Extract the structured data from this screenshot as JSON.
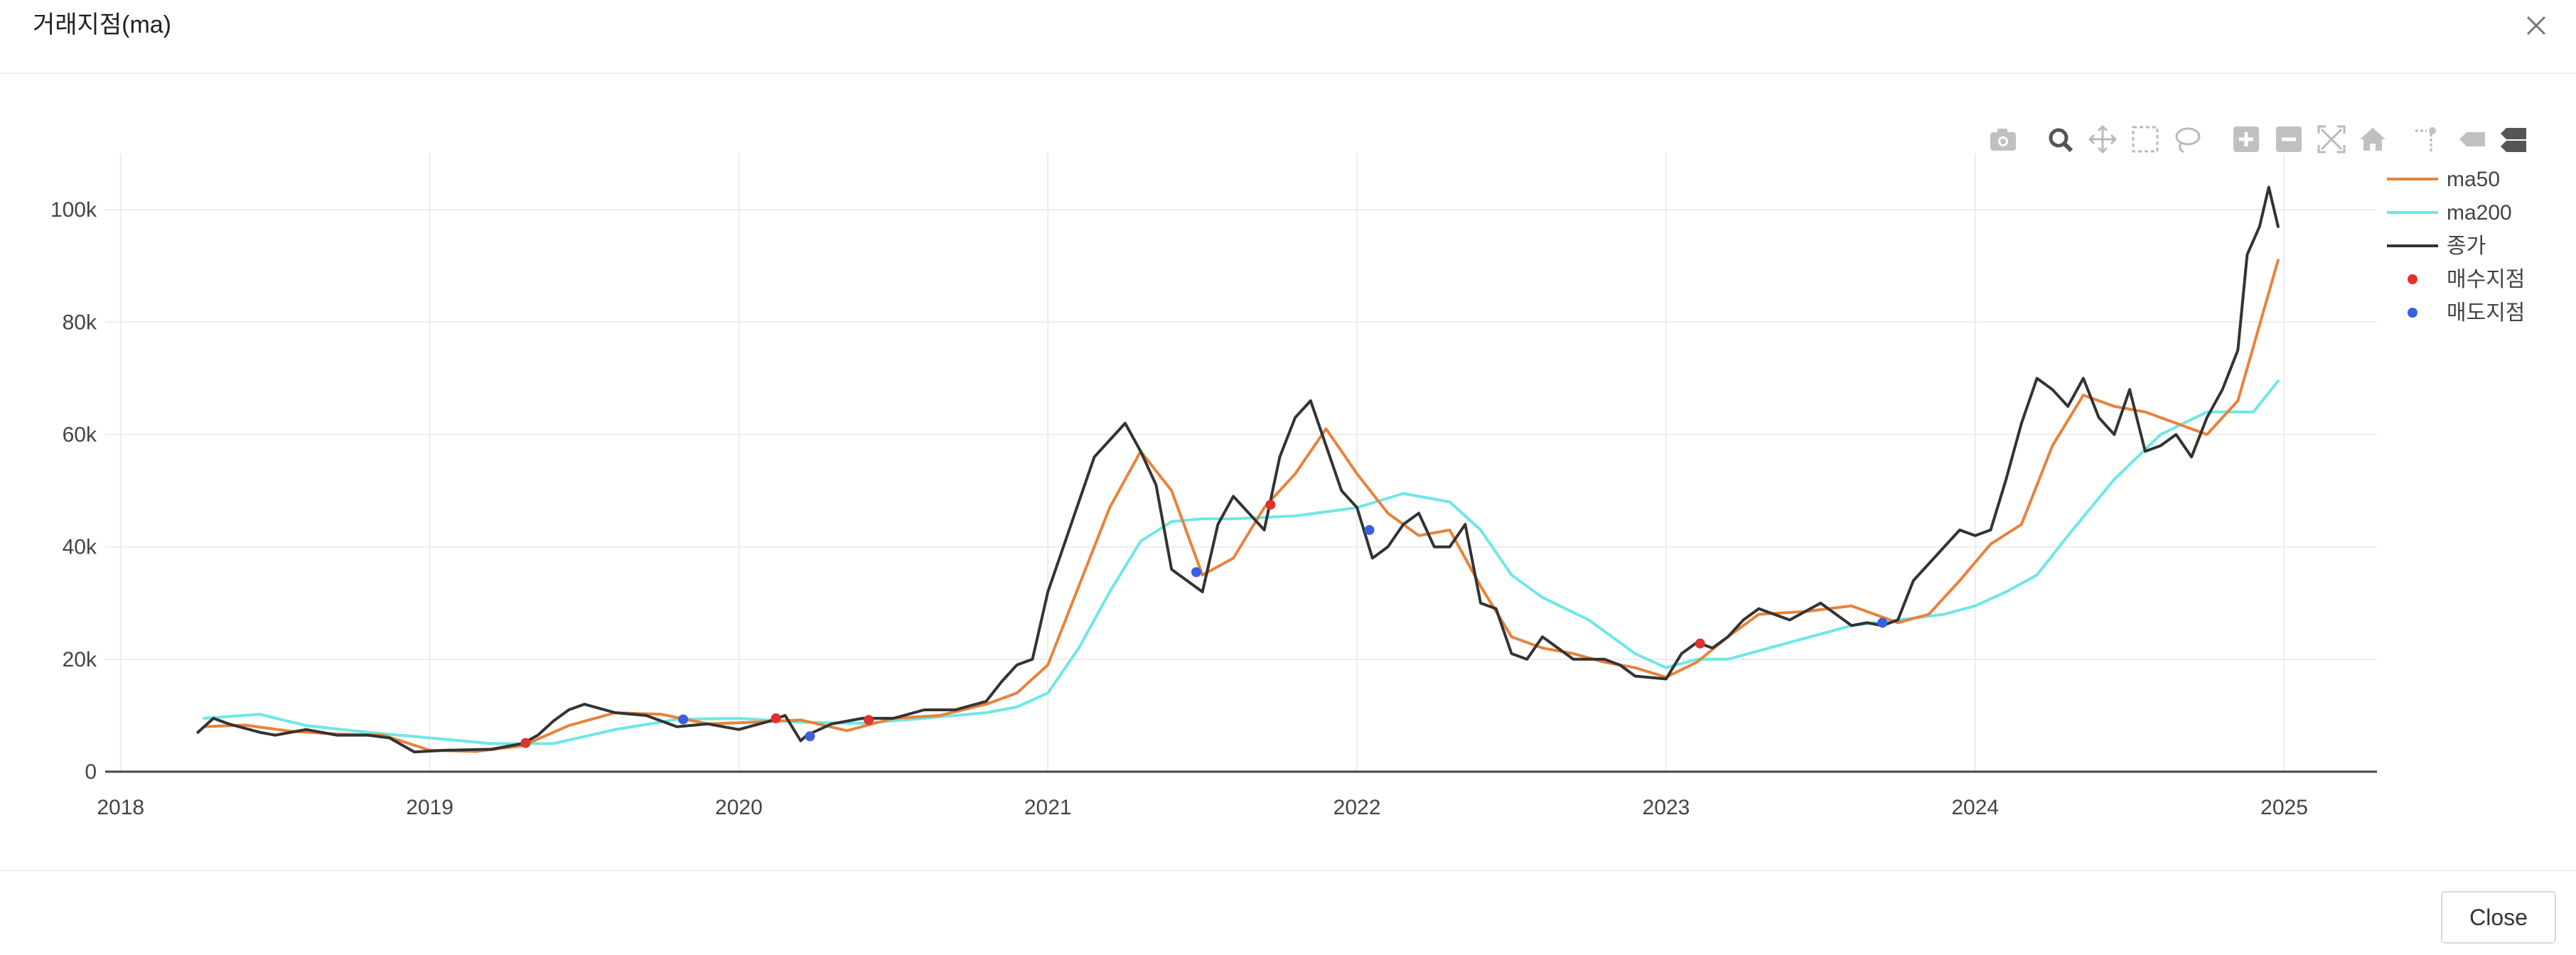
{
  "dialog": {
    "title": "거래지점(ma)",
    "close_button_label": "Close"
  },
  "toolbar": {
    "icons": [
      "camera-icon",
      "zoom-icon",
      "pan-icon",
      "box-select-icon",
      "lasso-select-icon",
      "zoom-in-icon",
      "zoom-out-icon",
      "autoscale-icon",
      "reset-axes-icon",
      "spike-lines-icon",
      "hover-closest-icon",
      "hover-compare-icon"
    ]
  },
  "chart_data": {
    "type": "line",
    "title": "",
    "xlabel": "",
    "ylabel": "",
    "x_range": [
      2017.95,
      2025.3
    ],
    "ylim": [
      0,
      110000
    ],
    "y_ticks": [
      0,
      20000,
      40000,
      60000,
      80000,
      100000
    ],
    "y_tick_labels": [
      "0",
      "20k",
      "40k",
      "60k",
      "80k",
      "100k"
    ],
    "x_ticks": [
      2018,
      2019,
      2020,
      2021,
      2022,
      2023,
      2024,
      2025
    ],
    "x_tick_labels": [
      "2018",
      "2019",
      "2020",
      "2021",
      "2022",
      "2023",
      "2024",
      "2025"
    ],
    "grid": true,
    "legend_position": "top-right",
    "colors": {
      "ma50": "#e8823a",
      "ma200": "#6ee7e7",
      "close": "#333333",
      "buy": "#e03030",
      "sell": "#3a5fe0"
    },
    "series": [
      {
        "name": "ma50",
        "kind": "line",
        "x": [
          2018.27,
          2018.4,
          2018.55,
          2018.7,
          2018.85,
          2019.0,
          2019.15,
          2019.3,
          2019.45,
          2019.6,
          2019.75,
          2019.9,
          2020.05,
          2020.2,
          2020.35,
          2020.5,
          2020.65,
          2020.8,
          2020.9,
          2021.0,
          2021.1,
          2021.2,
          2021.3,
          2021.4,
          2021.5,
          2021.6,
          2021.7,
          2021.8,
          2021.9,
          2022.0,
          2022.1,
          2022.2,
          2022.3,
          2022.4,
          2022.5,
          2022.6,
          2022.7,
          2022.8,
          2022.9,
          2023.0,
          2023.1,
          2023.2,
          2023.3,
          2023.45,
          2023.6,
          2023.75,
          2023.85,
          2023.95,
          2024.05,
          2024.15,
          2024.25,
          2024.35,
          2024.45,
          2024.55,
          2024.65,
          2024.75,
          2024.85,
          2024.98
        ],
        "y": [
          8000,
          8300,
          7200,
          6700,
          6500,
          3800,
          3600,
          4600,
          8200,
          10500,
          10200,
          8500,
          8800,
          9200,
          7300,
          9500,
          10000,
          12000,
          14000,
          19000,
          33000,
          47000,
          57000,
          50000,
          35000,
          38000,
          47000,
          53000,
          61000,
          53000,
          46000,
          42000,
          43000,
          33000,
          24000,
          22000,
          21000,
          19500,
          18500,
          16800,
          19500,
          24000,
          28000,
          28500,
          29500,
          26500,
          28000,
          34000,
          40500,
          44000,
          58000,
          67000,
          65000,
          64000,
          62000,
          60000,
          66000,
          91000
        ]
      },
      {
        "name": "ma200",
        "kind": "line",
        "x": [
          2018.27,
          2018.45,
          2018.6,
          2018.8,
          2019.0,
          2019.2,
          2019.4,
          2019.6,
          2019.8,
          2020.0,
          2020.2,
          2020.4,
          2020.6,
          2020.8,
          2020.9,
          2021.0,
          2021.1,
          2021.2,
          2021.3,
          2021.4,
          2021.5,
          2021.6,
          2021.8,
          2022.0,
          2022.15,
          2022.3,
          2022.4,
          2022.5,
          2022.6,
          2022.75,
          2022.9,
          2023.0,
          2023.1,
          2023.2,
          2023.4,
          2023.6,
          2023.75,
          2023.9,
          2024.0,
          2024.1,
          2024.2,
          2024.3,
          2024.45,
          2024.6,
          2024.75,
          2024.9,
          2024.98
        ],
        "y": [
          9500,
          10200,
          8200,
          7000,
          6000,
          5000,
          5000,
          7500,
          9300,
          9500,
          8800,
          8600,
          9500,
          10500,
          11500,
          14000,
          22000,
          32000,
          41000,
          44500,
          45000,
          45000,
          45500,
          47000,
          49500,
          48000,
          43000,
          35000,
          31000,
          27000,
          21000,
          18500,
          20000,
          20000,
          23000,
          26000,
          27000,
          28000,
          29500,
          32000,
          35000,
          42000,
          52000,
          60000,
          64000,
          64000,
          69500
        ]
      },
      {
        "name": "종가",
        "kind": "line",
        "x": [
          2018.25,
          2018.3,
          2018.35,
          2018.45,
          2018.5,
          2018.6,
          2018.7,
          2018.8,
          2018.87,
          2018.95,
          2019.05,
          2019.2,
          2019.3,
          2019.35,
          2019.4,
          2019.45,
          2019.5,
          2019.6,
          2019.7,
          2019.8,
          2019.9,
          2020.0,
          2020.1,
          2020.15,
          2020.2,
          2020.22,
          2020.3,
          2020.4,
          2020.5,
          2020.6,
          2020.7,
          2020.8,
          2020.85,
          2020.9,
          2020.95,
          2021.0,
          2021.05,
          2021.1,
          2021.15,
          2021.2,
          2021.25,
          2021.3,
          2021.35,
          2021.4,
          2021.45,
          2021.5,
          2021.55,
          2021.6,
          2021.65,
          2021.7,
          2021.75,
          2021.8,
          2021.85,
          2021.9,
          2021.95,
          2022.0,
          2022.05,
          2022.1,
          2022.15,
          2022.2,
          2022.25,
          2022.3,
          2022.35,
          2022.4,
          2022.45,
          2022.5,
          2022.55,
          2022.6,
          2022.7,
          2022.8,
          2022.85,
          2022.9,
          2023.0,
          2023.05,
          2023.1,
          2023.15,
          2023.2,
          2023.25,
          2023.3,
          2023.4,
          2023.5,
          2023.6,
          2023.65,
          2023.7,
          2023.75,
          2023.8,
          2023.85,
          2023.9,
          2023.95,
          2024.0,
          2024.05,
          2024.1,
          2024.15,
          2024.2,
          2024.25,
          2024.3,
          2024.35,
          2024.4,
          2024.45,
          2024.5,
          2024.55,
          2024.6,
          2024.65,
          2024.7,
          2024.75,
          2024.8,
          2024.85,
          2024.88,
          2024.92,
          2024.95,
          2024.98
        ],
        "y": [
          7000,
          9500,
          8500,
          7000,
          6500,
          7500,
          6500,
          6500,
          6000,
          3500,
          3800,
          4000,
          5000,
          6500,
          9000,
          11000,
          12000,
          10500,
          10000,
          8000,
          8500,
          7500,
          9000,
          10000,
          5500,
          6500,
          8500,
          9500,
          9500,
          11000,
          11000,
          12500,
          16000,
          19000,
          20000,
          32000,
          40000,
          48000,
          56000,
          59000,
          62000,
          57000,
          51000,
          36000,
          34000,
          32000,
          44000,
          49000,
          46000,
          43000,
          56000,
          63000,
          66000,
          58000,
          50000,
          47000,
          38000,
          40000,
          44000,
          46000,
          40000,
          40000,
          44000,
          30000,
          29000,
          21000,
          20000,
          24000,
          20000,
          20000,
          19000,
          17000,
          16500,
          21000,
          23000,
          22000,
          24000,
          27000,
          29000,
          27000,
          30000,
          26000,
          26500,
          26000,
          27000,
          34000,
          37000,
          40000,
          43000,
          42000,
          43000,
          52000,
          62000,
          70000,
          68000,
          65000,
          70000,
          63000,
          60000,
          68000,
          57000,
          58000,
          60000,
          56000,
          63000,
          68000,
          75000,
          92000,
          97000,
          104000,
          97000
        ]
      },
      {
        "name": "매수지점",
        "kind": "markers",
        "x": [
          2019.31,
          2020.12,
          2020.42,
          2021.72,
          2023.11
        ],
        "y": [
          5100,
          9500,
          9200,
          47500,
          22800
        ]
      },
      {
        "name": "매도지점",
        "kind": "markers",
        "x": [
          2019.82,
          2020.23,
          2021.48,
          2022.04,
          2023.7
        ],
        "y": [
          9300,
          6300,
          35500,
          43000,
          26500
        ]
      }
    ],
    "legend": [
      "ma50",
      "ma200",
      "종가",
      "매수지점",
      "매도지점"
    ]
  }
}
